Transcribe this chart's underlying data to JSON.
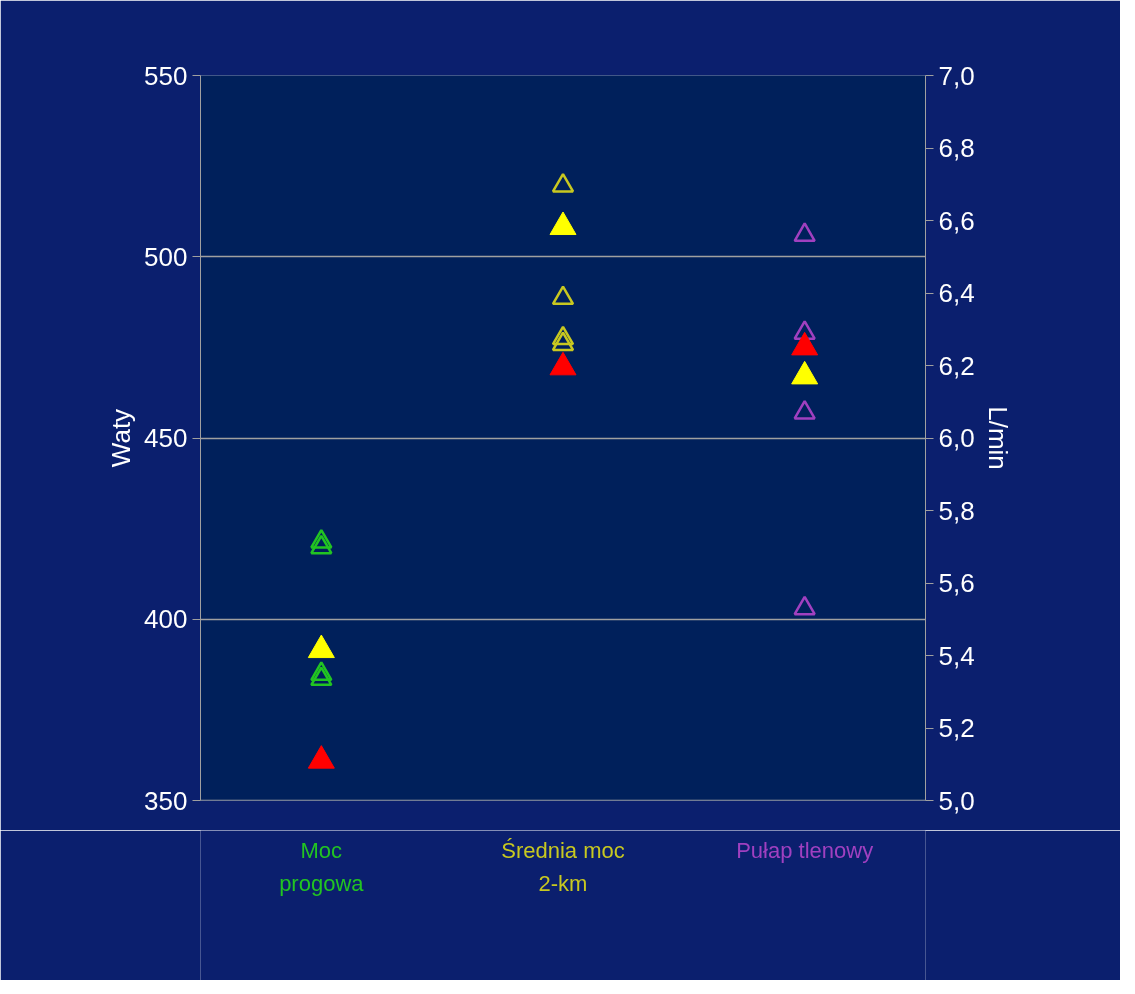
{
  "chart_data": {
    "type": "scatter",
    "marker": "triangle",
    "categories": [
      "Moc\nprogowa",
      "Średnia moc\n2-km",
      "Pułap tlenowy"
    ],
    "ylabel": "Waty",
    "y2label": "L/min",
    "ylim": [
      350,
      550
    ],
    "yticks": [
      350,
      400,
      450,
      500,
      550
    ],
    "y2lim": [
      5.0,
      7.0
    ],
    "y2ticks": [
      {
        "value": 5.0,
        "label": "5,0"
      },
      {
        "value": 5.2,
        "label": "5,2"
      },
      {
        "value": 5.4,
        "label": "5,4"
      },
      {
        "value": 5.6,
        "label": "5,6"
      },
      {
        "value": 5.8,
        "label": "5,8"
      },
      {
        "value": 6.0,
        "label": "6,0"
      },
      {
        "value": 6.2,
        "label": "6,2"
      },
      {
        "value": 6.4,
        "label": "6,4"
      },
      {
        "value": 6.6,
        "label": "6,6"
      },
      {
        "value": 6.8,
        "label": "6,8"
      },
      {
        "value": 7.0,
        "label": "7,0"
      }
    ],
    "grid": "y",
    "series": [
      {
        "color": "#22c422",
        "x": [
          "Moc\nprogowa",
          "Moc\nprogowa",
          "Moc\nprogowa",
          "Moc\nprogowa"
        ],
        "values": [
          421.4,
          419.8,
          384.9,
          383.5
        ]
      },
      {
        "color": "#c8c820",
        "x": [
          "Średnia moc\n2-km",
          "Średnia moc\n2-km",
          "Średnia moc\n2-km",
          "Średnia moc\n2-km"
        ],
        "values": [
          519.6,
          488.6,
          477.5,
          475.9
        ]
      },
      {
        "color": "#a040c0",
        "axis": "y2",
        "x": [
          "Pułap tlenowy",
          "Pułap tlenowy",
          "Pułap tlenowy",
          "Pułap tlenowy"
        ],
        "values": [
          6.56,
          6.29,
          6.07,
          5.53
        ]
      },
      {
        "color": "#ffff00",
        "x": [
          "Moc\nprogowa",
          "Średnia moc\n2-km"
        ],
        "values": [
          391.5,
          508.2
        ]
      },
      {
        "color": "#ff0000",
        "x": [
          "Moc\nprogowa",
          "Średnia moc\n2-km"
        ],
        "values": [
          361,
          469.5
        ]
      },
      {
        "color": "#ffff00",
        "axis": "y2",
        "x": [
          "Pułap tlenowy"
        ],
        "values": [
          6.17
        ]
      },
      {
        "color": "#ff0000",
        "axis": "y2",
        "x": [
          "Pułap tlenowy"
        ],
        "values": [
          6.25
        ]
      }
    ]
  }
}
